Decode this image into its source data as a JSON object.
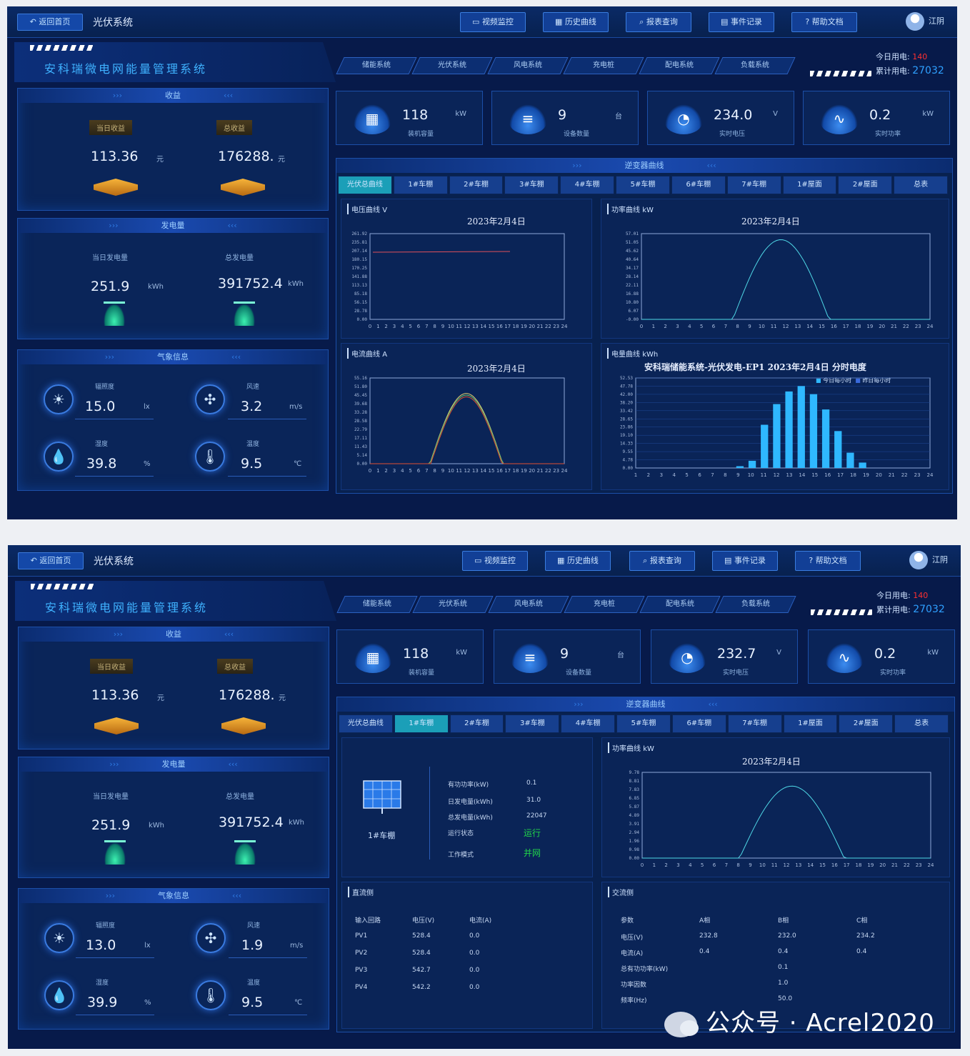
{
  "topbar": {
    "back_label": "返回首页",
    "system_title": "光伏系统",
    "nav": [
      {
        "label": "视频监控",
        "icon": "video-icon"
      },
      {
        "label": "历史曲线",
        "icon": "chart-icon"
      },
      {
        "label": "报表查询",
        "icon": "search-icon"
      },
      {
        "label": "事件记录",
        "icon": "document-icon"
      },
      {
        "label": "帮助文档",
        "icon": "help-icon"
      }
    ],
    "user": "江阴"
  },
  "brand_title": "安科瑞微电网能量管理系统",
  "subnav": [
    "储能系统",
    "光伏系统",
    "风电系统",
    "充电桩",
    "配电系统",
    "负载系统"
  ],
  "energy_summary": {
    "today_label": "今日用电:",
    "today_value": "140",
    "total_label": "累计用电:",
    "total_value": "27032"
  },
  "colors": {
    "accent": "#1b9fb8",
    "bg": "#071a4a",
    "panel": "#0a2559",
    "red": "#ff3030",
    "green": "#21d44a"
  },
  "screen1": {
    "income": {
      "title": "收益",
      "today_label": "当日收益",
      "total_label": "总收益",
      "today_value": "113.36",
      "total_value": "176288.",
      "unit": "元"
    },
    "generation": {
      "title": "发电量",
      "today_label": "当日发电量",
      "total_label": "总发电量",
      "today_value": "251.9",
      "total_value": "391752.4",
      "unit": "kWh"
    },
    "weather": {
      "title": "气象信息",
      "irradiance_label": "辐照度",
      "irradiance": "15.0",
      "irradiance_unit": "lx",
      "wind_label": "风速",
      "wind": "3.2",
      "wind_unit": "m/s",
      "humidity_label": "湿度",
      "humidity": "39.8",
      "humidity_unit": "%",
      "temp_label": "温度",
      "temp": "9.5",
      "temp_unit": "℃"
    },
    "kpis": [
      {
        "value": "118",
        "unit": "kW",
        "label": "装机容量",
        "icon": "solar-panel-icon"
      },
      {
        "value": "9",
        "unit": "台",
        "label": "设备数量",
        "icon": "inverter-icon"
      },
      {
        "value": "234.0",
        "unit": "V",
        "label": "实时电压",
        "icon": "gauge-icon"
      },
      {
        "value": "0.2",
        "unit": "kW",
        "label": "实时功率",
        "icon": "pulse-icon"
      }
    ],
    "chart_section_title": "逆变器曲线",
    "tabs": [
      "光伏总曲线",
      "1#车棚",
      "2#车棚",
      "3#车棚",
      "4#车棚",
      "5#车棚",
      "6#车棚",
      "7#车棚",
      "1#屋面",
      "2#屋面",
      "总表"
    ],
    "active_tab": 0,
    "voltage_chart": {
      "title": "电压曲线",
      "unit": "V",
      "date": "2023年2月4日",
      "yticks": [
        "261.92",
        "235.81",
        "207.14",
        "180.15",
        "170.25",
        "141.88",
        "113.13",
        "85.18",
        "56.15",
        "28.78",
        "0.00"
      ]
    },
    "power_chart": {
      "title": "功率曲线",
      "unit": "kW",
      "date": "2023年2月4日",
      "yticks": [
        "57.01",
        "51.05",
        "45.62",
        "40.64",
        "34.17",
        "28.14",
        "22.11",
        "16.88",
        "10.80",
        "6.07",
        "-0.00"
      ]
    },
    "current_chart": {
      "title": "电流曲线",
      "unit": "A",
      "date": "2023年2月4日",
      "yticks": [
        "55.16",
        "51.80",
        "45.45",
        "39.68",
        "33.28",
        "28.58",
        "22.79",
        "17.11",
        "11.43",
        "5.14",
        "0.00"
      ]
    },
    "energy_chart": {
      "title": "电量曲线",
      "unit": "kWh",
      "date_title": "安科瑞储能系统-光伏发电-EP1 2023年2月4日 分时电度",
      "legend": [
        "今日每小时",
        "昨日每小时"
      ],
      "yticks": [
        "52.53",
        "47.78",
        "42.00",
        "38.20",
        "33.42",
        "28.65",
        "23.86",
        "19.10",
        "14.33",
        "9.55",
        "4.78",
        "0.00"
      ]
    }
  },
  "screen2": {
    "income": {
      "title": "收益",
      "today_label": "当日收益",
      "total_label": "总收益",
      "today_value": "113.36",
      "total_value": "176288.",
      "unit": "元"
    },
    "generation": {
      "title": "发电量",
      "today_label": "当日发电量",
      "total_label": "总发电量",
      "today_value": "251.9",
      "total_value": "391752.4",
      "unit": "kWh"
    },
    "weather": {
      "title": "气象信息",
      "irradiance_label": "辐照度",
      "irradiance": "13.0",
      "irradiance_unit": "lx",
      "wind_label": "风速",
      "wind": "1.9",
      "wind_unit": "m/s",
      "humidity_label": "湿度",
      "humidity": "39.9",
      "humidity_unit": "%",
      "temp_label": "温度",
      "temp": "9.5",
      "temp_unit": "℃"
    },
    "kpis": [
      {
        "value": "118",
        "unit": "kW",
        "label": "装机容量",
        "icon": "solar-panel-icon"
      },
      {
        "value": "9",
        "unit": "台",
        "label": "设备数量",
        "icon": "inverter-icon"
      },
      {
        "value": "232.7",
        "unit": "V",
        "label": "实时电压",
        "icon": "gauge-icon"
      },
      {
        "value": "0.2",
        "unit": "kW",
        "label": "实时功率",
        "icon": "pulse-icon"
      }
    ],
    "chart_section_title": "逆变器曲线",
    "tabs": [
      "光伏总曲线",
      "1#车棚",
      "2#车棚",
      "3#车棚",
      "4#车棚",
      "5#车棚",
      "6#车棚",
      "7#车棚",
      "1#屋面",
      "2#屋面",
      "总表"
    ],
    "active_tab": 1,
    "device": {
      "name": "1#车棚",
      "rows": [
        {
          "label": "有功功率(kW)",
          "value": "0.1"
        },
        {
          "label": "日发电量(kWh)",
          "value": "31.0"
        },
        {
          "label": "总发电量(kWh)",
          "value": "22047"
        },
        {
          "label": "运行状态",
          "value": "运行"
        },
        {
          "label": "工作模式",
          "value": "并网"
        }
      ]
    },
    "power_chart": {
      "title": "功率曲线",
      "unit": "kW",
      "date": "2023年2月4日",
      "yticks": [
        "9.78",
        "8.81",
        "7.83",
        "6.85",
        "5.87",
        "4.89",
        "3.91",
        "2.94",
        "1.96",
        "0.98",
        "0.00"
      ]
    },
    "dc_table": {
      "title": "直流侧",
      "headers": [
        "输入回路",
        "电压(V)",
        "电流(A)"
      ],
      "rows": [
        [
          "PV1",
          "528.4",
          "0.0"
        ],
        [
          "PV2",
          "528.4",
          "0.0"
        ],
        [
          "PV3",
          "542.7",
          "0.0"
        ],
        [
          "PV4",
          "542.2",
          "0.0"
        ]
      ]
    },
    "ac_table": {
      "title": "交流侧",
      "headers": [
        "参数",
        "A相",
        "B相",
        "C相"
      ],
      "rows": [
        [
          "电压(V)",
          "232.8",
          "232.0",
          "234.2"
        ],
        [
          "电流(A)",
          "0.4",
          "0.4",
          "0.4"
        ],
        [
          "总有功功率(kW)",
          "",
          "0.1",
          ""
        ],
        [
          "功率因数",
          "",
          "1.0",
          ""
        ],
        [
          "频率(Hz)",
          "",
          "50.0",
          ""
        ]
      ]
    }
  },
  "xticks_24": [
    "0",
    "1",
    "2",
    "3",
    "4",
    "5",
    "6",
    "7",
    "8",
    "9",
    "10",
    "11",
    "12",
    "13",
    "14",
    "15",
    "16",
    "17",
    "18",
    "19",
    "20",
    "21",
    "22",
    "23",
    "24"
  ],
  "watermark": "公众号 · Acrel2020"
}
